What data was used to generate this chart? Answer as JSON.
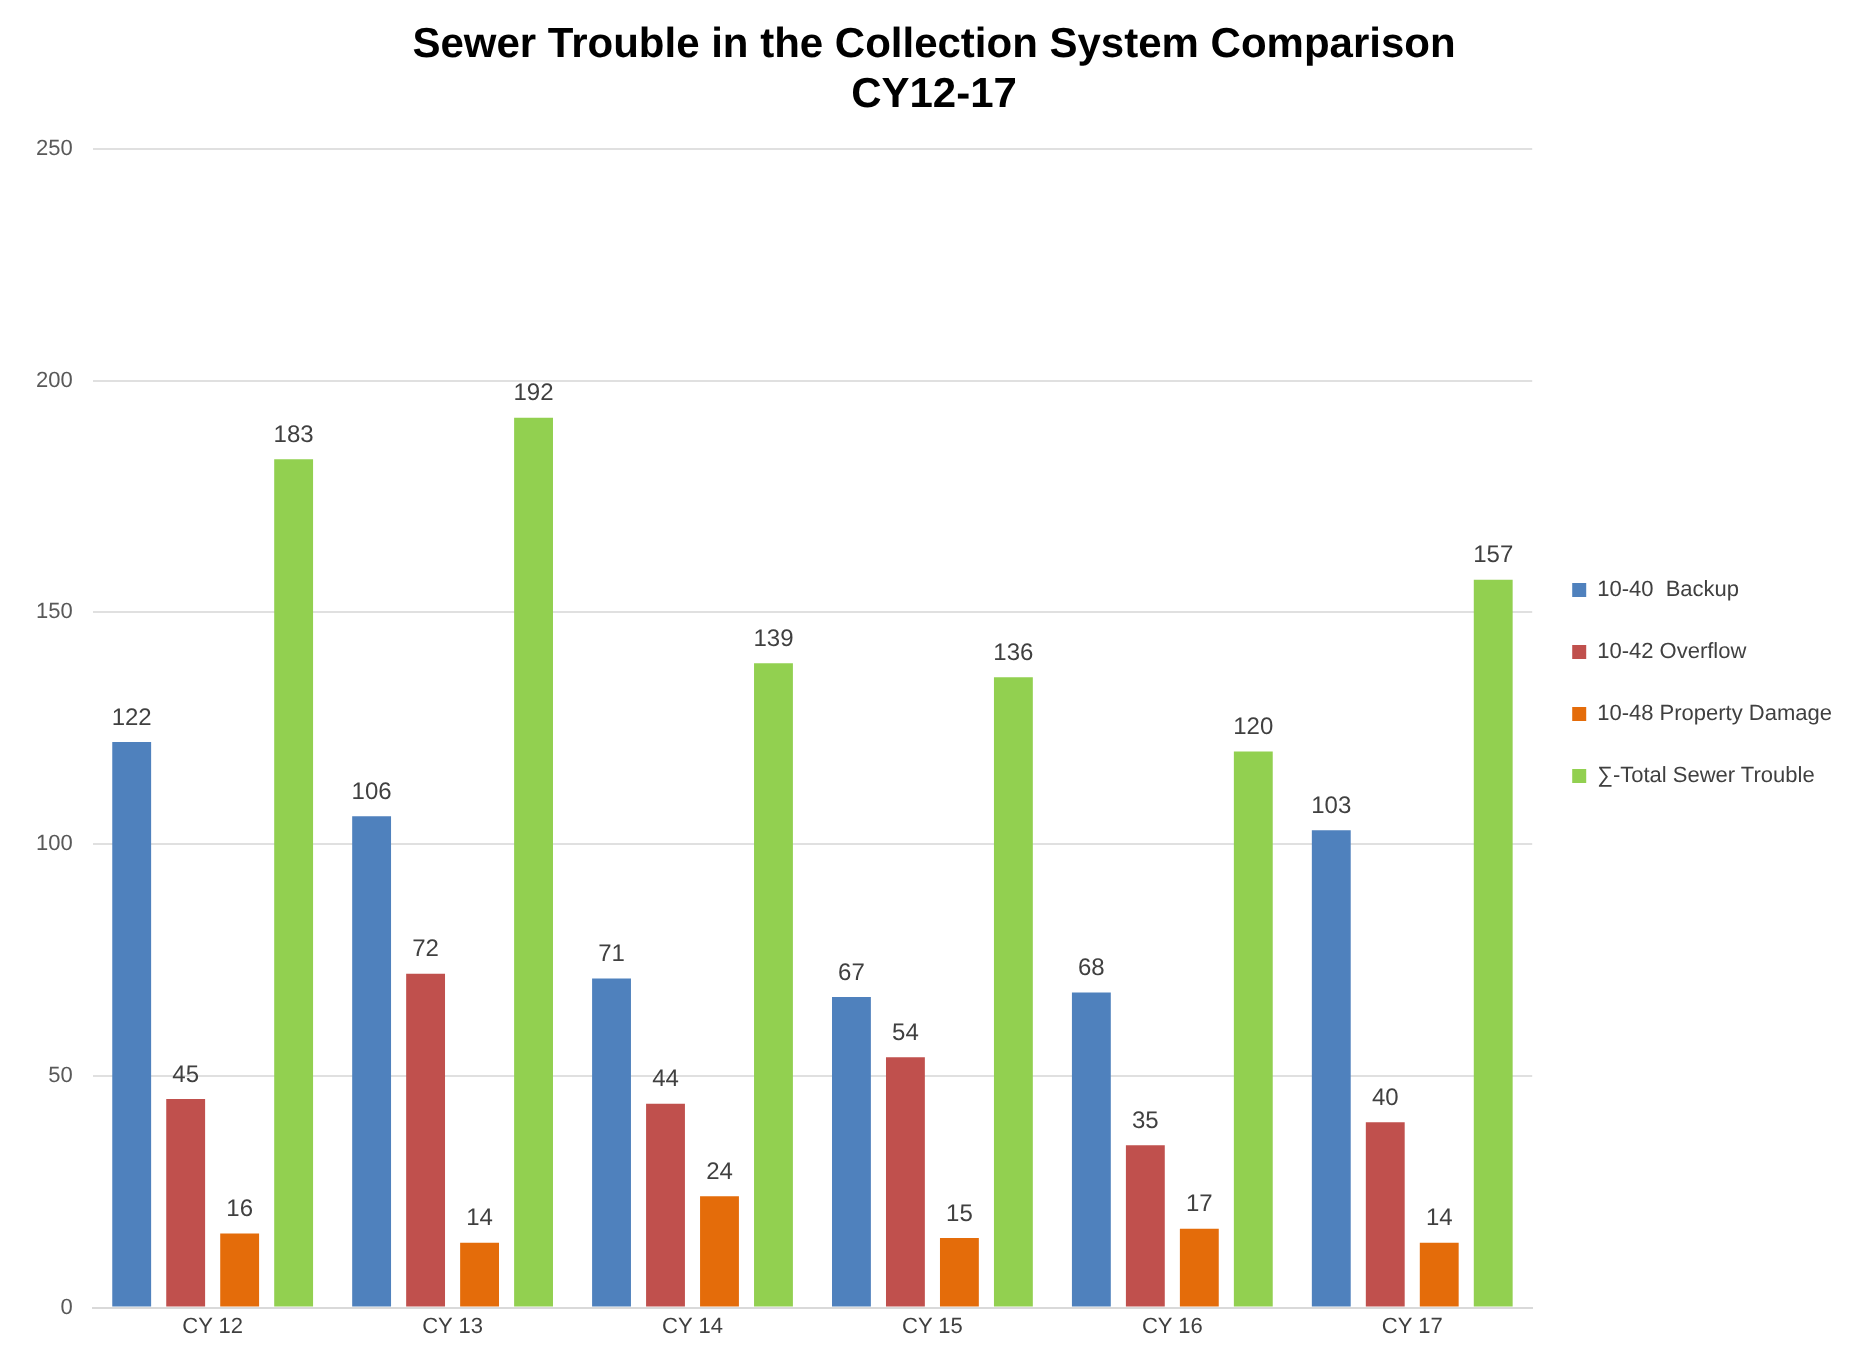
{
  "chart_data": {
    "type": "bar",
    "title": "Sewer Trouble in the Collection System Comparison\nCY12-17",
    "categories": [
      "CY 12",
      "CY 13",
      "CY 14",
      "CY 15",
      "CY 16",
      "CY 17"
    ],
    "series": [
      {
        "name": "10-40  Backup",
        "color": "#4f81bd",
        "values": [
          122,
          106,
          71,
          67,
          68,
          103
        ]
      },
      {
        "name": "10-42 Overflow",
        "color": "#c0504d",
        "values": [
          45,
          72,
          44,
          54,
          35,
          40
        ]
      },
      {
        "name": "10-48 Property Damage",
        "color": "#e46c0a",
        "values": [
          16,
          14,
          24,
          15,
          17,
          14
        ]
      },
      {
        "name": "∑-Total Sewer Trouble",
        "color": "#92d050",
        "values": [
          183,
          192,
          139,
          136,
          120,
          157
        ]
      }
    ],
    "ylim": [
      0,
      250
    ],
    "yticks": [
      0,
      50,
      100,
      150,
      200,
      250
    ],
    "grid": "y",
    "legend": "right",
    "data_labels": true
  }
}
